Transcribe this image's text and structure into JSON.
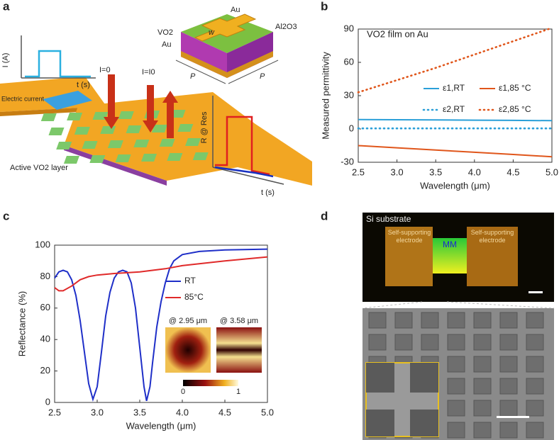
{
  "panel_labels": [
    "a",
    "b",
    "c",
    "d"
  ],
  "diagram_a": {
    "current_axis_y": "I (A)",
    "current_axis_x": "t (s)",
    "electric_current": "Electric current",
    "state_off": "I=0",
    "state_on": "I=I0",
    "resistance_axis_y": "R @ Res",
    "resistance_axis_x": "t (s)",
    "active_layer": "Active VO2 layer",
    "unit_cell": {
      "top_layer": "Au",
      "oxide": "Al2O3",
      "vo2": "VO2",
      "bottom_layer": "Au",
      "width": "w",
      "period_left": "P",
      "period_right": "P"
    }
  },
  "chart_data": [
    {
      "type": "line",
      "annotation": "VO2 film on Au",
      "x_label": "Wavelength (μm)",
      "y_label": "Measured permittivity",
      "x": [
        2.5,
        3.0,
        3.5,
        4.0,
        4.5,
        5.0
      ],
      "series": [
        {
          "name": "ε1,RT",
          "color": "#2a9fd8",
          "style": "solid",
          "values": [
            8.5,
            8.3,
            8.1,
            7.9,
            7.7,
            7.5
          ]
        },
        {
          "name": "ε1,85 °C",
          "color": "#e0561b",
          "style": "solid",
          "values": [
            -15,
            -17,
            -19,
            -21,
            -23,
            -25
          ]
        },
        {
          "name": "ε2,RT",
          "color": "#2a9fd8",
          "style": "dotted",
          "values": [
            0.5,
            0.5,
            0.5,
            0.5,
            0.5,
            0.5
          ]
        },
        {
          "name": "ε2,85 °C",
          "color": "#e0561b",
          "style": "dotted",
          "values": [
            33,
            44,
            55,
            67,
            79,
            91
          ]
        }
      ],
      "xlim": [
        2.5,
        5.0
      ],
      "xticks": [
        2.5,
        {
          "value": 3,
          "label": "3.0"
        },
        3.5,
        {
          "value": 4,
          "label": "4.0"
        },
        4.5,
        {
          "value": 5,
          "label": "5.0"
        }
      ],
      "ylim": [
        -30,
        90
      ],
      "yticks": [
        -30,
        0,
        30,
        60,
        90
      ]
    },
    {
      "type": "line",
      "x_label": "Wavelength (μm)",
      "y_label": "Reflectance (%)",
      "series": [
        {
          "name": "RT",
          "color": "#1f2fc8",
          "style": "solid",
          "x": [
            2.5,
            2.55,
            2.6,
            2.65,
            2.7,
            2.75,
            2.8,
            2.85,
            2.9,
            2.95,
            3.0,
            3.05,
            3.1,
            3.15,
            3.2,
            3.25,
            3.3,
            3.35,
            3.4,
            3.45,
            3.5,
            3.55,
            3.58,
            3.62,
            3.65,
            3.7,
            3.75,
            3.8,
            3.85,
            3.9,
            4.0,
            4.2,
            4.5,
            5.0
          ],
          "values": [
            79,
            83,
            84,
            83,
            78,
            68,
            52,
            32,
            12,
            2,
            10,
            32,
            55,
            70,
            79,
            83,
            84,
            83,
            76,
            60,
            35,
            10,
            1,
            10,
            25,
            48,
            64,
            76,
            85,
            90,
            94,
            96,
            97,
            97.5
          ]
        },
        {
          "name": "85°C",
          "color": "#e02a2a",
          "style": "solid",
          "x": [
            2.5,
            2.55,
            2.6,
            2.7,
            2.8,
            2.9,
            3.0,
            3.2,
            3.5,
            3.8,
            4.0,
            4.5,
            5.0
          ],
          "values": [
            73,
            71,
            71,
            74,
            78,
            80,
            81,
            82,
            83,
            85,
            87,
            90,
            92.5
          ]
        }
      ],
      "xlim": [
        2.5,
        5.0
      ],
      "xticks": [
        2.5,
        {
          "value": 3,
          "label": "3.0"
        },
        3.5,
        {
          "value": 4,
          "label": "4.0"
        },
        4.5,
        {
          "value": 5,
          "label": "5.0"
        }
      ],
      "ylim": [
        0,
        100
      ],
      "yticks": [
        0,
        20,
        40,
        60,
        80,
        100
      ],
      "inset_labels": [
        "@ 2.95 μm",
        "@ 3.58 μm"
      ],
      "colorbar_ticks": [
        0,
        1
      ]
    }
  ],
  "image_d": {
    "substrate": "Si substrate",
    "electrode_left": "Self-supporting electrode",
    "center": "MM",
    "electrode_right": "Self-supporting electrode"
  }
}
